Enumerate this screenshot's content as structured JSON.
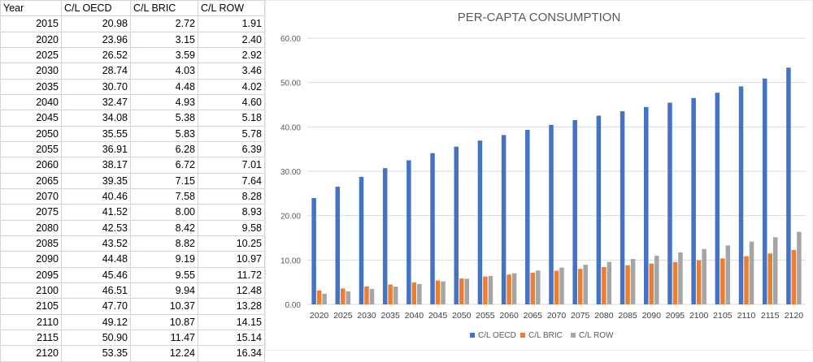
{
  "table": {
    "headers": [
      "Year",
      "C/L OECD",
      "C/L BRIC",
      "C/L ROW"
    ],
    "rows": [
      [
        "2015",
        "20.98",
        "2.72",
        "1.91"
      ],
      [
        "2020",
        "23.96",
        "3.15",
        "2.40"
      ],
      [
        "2025",
        "26.52",
        "3.59",
        "2.92"
      ],
      [
        "2030",
        "28.74",
        "4.03",
        "3.46"
      ],
      [
        "2035",
        "30.70",
        "4.48",
        "4.02"
      ],
      [
        "2040",
        "32.47",
        "4.93",
        "4.60"
      ],
      [
        "2045",
        "34.08",
        "5.38",
        "5.18"
      ],
      [
        "2050",
        "35.55",
        "5.83",
        "5.78"
      ],
      [
        "2055",
        "36.91",
        "6.28",
        "6.39"
      ],
      [
        "2060",
        "38.17",
        "6.72",
        "7.01"
      ],
      [
        "2065",
        "39.35",
        "7.15",
        "7.64"
      ],
      [
        "2070",
        "40.46",
        "7.58",
        "8.28"
      ],
      [
        "2075",
        "41.52",
        "8.00",
        "8.93"
      ],
      [
        "2080",
        "42.53",
        "8.42",
        "9.58"
      ],
      [
        "2085",
        "43.52",
        "8.82",
        "10.25"
      ],
      [
        "2090",
        "44.48",
        "9.19",
        "10.97"
      ],
      [
        "2095",
        "45.46",
        "9.55",
        "11.72"
      ],
      [
        "2100",
        "46.51",
        "9.94",
        "12.48"
      ],
      [
        "2105",
        "47.70",
        "10.37",
        "13.28"
      ],
      [
        "2110",
        "49.12",
        "10.87",
        "14.15"
      ],
      [
        "2115",
        "50.90",
        "11.47",
        "15.14"
      ],
      [
        "2120",
        "53.35",
        "12.24",
        "16.34"
      ]
    ]
  },
  "chart_data": {
    "type": "bar",
    "title": "PER-CAPTA CONSUMPTION",
    "categories": [
      "2020",
      "2025",
      "2030",
      "2035",
      "2040",
      "2045",
      "2050",
      "2055",
      "2060",
      "2065",
      "2070",
      "2075",
      "2080",
      "2085",
      "2090",
      "2095",
      "2100",
      "2105",
      "2110",
      "2115",
      "2120"
    ],
    "series": [
      {
        "name": "C/L OECD",
        "color": "#4472c4",
        "values": [
          23.96,
          26.52,
          28.74,
          30.7,
          32.47,
          34.08,
          35.55,
          36.91,
          38.17,
          39.35,
          40.46,
          41.52,
          42.53,
          43.52,
          44.48,
          45.46,
          46.51,
          47.7,
          49.12,
          50.9,
          53.35
        ]
      },
      {
        "name": "C/L BRIC",
        "color": "#ed7d31",
        "values": [
          3.15,
          3.59,
          4.03,
          4.48,
          4.93,
          5.38,
          5.83,
          6.28,
          6.72,
          7.15,
          7.58,
          8.0,
          8.42,
          8.82,
          9.19,
          9.55,
          9.94,
          10.37,
          10.87,
          11.47,
          12.24
        ]
      },
      {
        "name": "C/L ROW",
        "color": "#a5a5a5",
        "values": [
          2.4,
          2.92,
          3.46,
          4.02,
          4.6,
          5.18,
          5.78,
          6.39,
          7.01,
          7.64,
          8.28,
          8.93,
          9.58,
          10.25,
          10.97,
          11.72,
          12.48,
          13.28,
          14.15,
          15.14,
          16.34
        ]
      }
    ],
    "ylim": [
      0,
      60
    ],
    "yticks": [
      "0.00",
      "10.00",
      "20.00",
      "30.00",
      "40.00",
      "50.00",
      "60.00"
    ],
    "grid": true,
    "legend": "bottom"
  }
}
